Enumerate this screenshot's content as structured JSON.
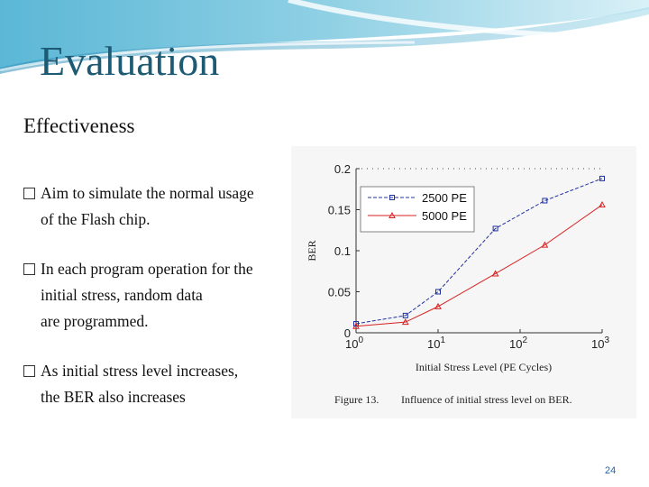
{
  "slide": {
    "title": "Evaluation",
    "subtitle": "Effectiveness",
    "bullets": [
      {
        "lines": [
          "Aim to simulate the normal usage",
          "of the Flash chip."
        ]
      },
      {
        "lines": [
          "In each program operation for the",
          " initial stress, random data",
          " are programmed."
        ]
      },
      {
        "lines": [
          "As initial stress level increases,",
          "the BER also increases"
        ]
      }
    ],
    "page_number": "24"
  },
  "chart_data": {
    "type": "line",
    "xscale": "log",
    "xlim": [
      1,
      1000
    ],
    "ylim": [
      0,
      0.2
    ],
    "xlabel": "Initial Stress Level (PE Cycles)",
    "ylabel": "BER",
    "yticks": [
      "0",
      "0.05",
      "0.1",
      "0.15",
      "0.2"
    ],
    "xticks": [
      {
        "value": 1,
        "base": "10",
        "exp": "0"
      },
      {
        "value": 10,
        "base": "10",
        "exp": "1"
      },
      {
        "value": 100,
        "base": "10",
        "exp": "2"
      },
      {
        "value": 1000,
        "base": "10",
        "exp": "3"
      }
    ],
    "caption_label": "Figure 13.",
    "caption_text": "Influence of initial stress level on BER.",
    "legend_position": "top-left",
    "grid": false,
    "series": [
      {
        "name": "2500 PE",
        "color": "#2030a0",
        "marker": "square",
        "x": [
          1,
          4,
          10,
          50,
          200,
          1000
        ],
        "y": [
          0.011,
          0.021,
          0.05,
          0.127,
          0.161,
          0.188
        ]
      },
      {
        "name": "5000 PE",
        "color": "#d82020",
        "marker": "triangle",
        "x": [
          1,
          4,
          10,
          50,
          200,
          1000
        ],
        "y": [
          0.008,
          0.013,
          0.032,
          0.072,
          0.107,
          0.156
        ]
      }
    ]
  }
}
